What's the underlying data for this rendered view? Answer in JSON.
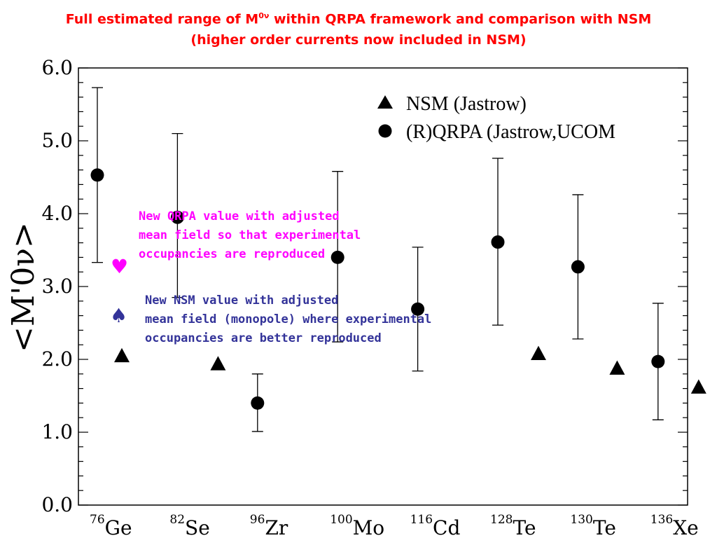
{
  "title": {
    "line1_pre": "Full estimated range of M",
    "line1_sup": "0ν",
    "line1_post": " within QRPA framework and comparison with NSM",
    "line2": "(higher order currents now included in NSM)"
  },
  "annotations": {
    "qrpa_note": "New QRPA value with adjusted\nmean field so that experimental\noccupancies are reproduced",
    "nsm_note": "New NSM value with adjusted\nmean field (monopole) where experimental\noccupancies are better reproduced",
    "heart_symbol": "♥",
    "spade_symbol": "♠"
  },
  "colors": {
    "title": "#ff0000",
    "qrpa_note": "#ff00ff",
    "nsm_note": "#333399"
  },
  "chart_data": {
    "type": "scatter",
    "ylabel": "<M'0ν>",
    "ylim": [
      0.0,
      6.0
    ],
    "yticks": [
      "0.0",
      "1.0",
      "2.0",
      "3.0",
      "4.0",
      "5.0",
      "6.0"
    ],
    "categories": [
      {
        "mass": "76",
        "symbol": "Ge"
      },
      {
        "mass": "82",
        "symbol": "Se"
      },
      {
        "mass": "96",
        "symbol": "Zr"
      },
      {
        "mass": "100",
        "symbol": "Mo"
      },
      {
        "mass": "116",
        "symbol": "Cd"
      },
      {
        "mass": "128",
        "symbol": "Te"
      },
      {
        "mass": "130",
        "symbol": "Te"
      },
      {
        "mass": "136",
        "symbol": "Xe"
      }
    ],
    "series": [
      {
        "name": "NSM (Jastrow)",
        "marker": "triangle",
        "values": [
          2.05,
          1.94,
          null,
          null,
          null,
          2.08,
          1.88,
          1.62
        ]
      },
      {
        "name": "(R)QRPA (Jastrow,UCOM",
        "marker": "circle",
        "values": [
          4.53,
          3.95,
          1.4,
          3.4,
          2.69,
          3.61,
          3.27,
          1.97
        ],
        "err_low": [
          3.33,
          2.85,
          1.01,
          2.24,
          1.84,
          2.47,
          2.28,
          1.17
        ],
        "err_high": [
          5.73,
          5.1,
          1.8,
          4.58,
          3.54,
          4.76,
          4.26,
          2.77
        ]
      }
    ],
    "grid": false,
    "legend_position": "top-right"
  }
}
